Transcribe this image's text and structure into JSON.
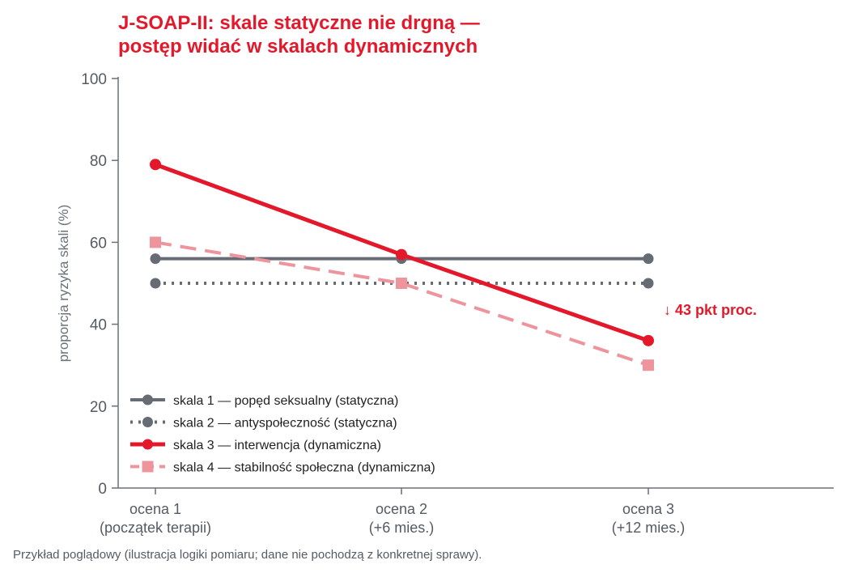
{
  "chart_data": {
    "type": "line",
    "title": [
      "J-SOAP-II: skale statyczne nie drgną —",
      "postęp widać w skalach dynamicznych"
    ],
    "ylabel": "proporcja ryzyka skali (%)",
    "ylim": [
      0,
      100
    ],
    "yticks": [
      0,
      20,
      40,
      60,
      80,
      100
    ],
    "categories": [
      [
        "ocena 1",
        "(początek terapii)"
      ],
      [
        "ocena 2",
        "(+6 mies.)"
      ],
      [
        "ocena 3",
        "(+12 mies.)"
      ]
    ],
    "series": [
      {
        "name": "skala 1 — popęd seksualny (statyczna)",
        "values": [
          56,
          56,
          56
        ],
        "color": "#666b74",
        "style": "solid",
        "marker": "circle"
      },
      {
        "name": "skala 2 — antyspołeczność (statyczna)",
        "values": [
          50,
          50,
          50
        ],
        "color": "#666b74",
        "style": "dotted",
        "marker": "circle"
      },
      {
        "name": "skala 3 — interwencja (dynamiczna)",
        "values": [
          79,
          57,
          36
        ],
        "color": "#e3192b",
        "style": "solid",
        "marker": "circle"
      },
      {
        "name": "skala 4 — stabilność społeczna (dynamiczna)",
        "values": [
          60,
          50,
          30
        ],
        "color": "#ee949c",
        "style": "dashed",
        "marker": "square"
      }
    ],
    "annotation": "↓ 43 pkt proc.",
    "legend_position": "bottom-left",
    "grid": false
  },
  "footnote": "Przykład poglądowy (ilustracja logiki pomiaru; dane nie pochodzą z konkretnej sprawy)."
}
